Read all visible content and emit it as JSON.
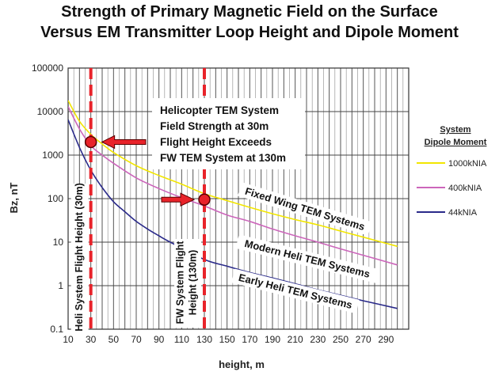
{
  "chart_data": {
    "type": "line",
    "title": "Strength of Primary Magnetic Field on the Surface",
    "subtitle": "Versus EM Transmitter Loop Height and Dipole Moment",
    "xlabel": "height, m",
    "ylabel": "Bz, nT",
    "xlim": [
      10,
      310
    ],
    "ylim": [
      0.1,
      100000
    ],
    "y_scale": "log",
    "grid": true,
    "x_ticks": [
      "10",
      "30",
      "50",
      "70",
      "90",
      "110",
      "130",
      "150",
      "170",
      "190",
      "210",
      "230",
      "250",
      "270",
      "290"
    ],
    "y_ticks": [
      "0.1",
      "1",
      "10",
      "100",
      "1000",
      "10000",
      "100000"
    ],
    "legend_title": [
      "System",
      "Dipole Moment"
    ],
    "legend_position": "right",
    "series": [
      {
        "name": "1000kNIA",
        "color": "#f2e600",
        "x": [
          10,
          20,
          30,
          40,
          50,
          70,
          90,
          110,
          130,
          150,
          170,
          190,
          210,
          230,
          250,
          270,
          300
        ],
        "y": [
          18000,
          6000,
          3000,
          1800,
          1150,
          570,
          340,
          215,
          130,
          90,
          63,
          45,
          33,
          25,
          18,
          13,
          8
        ]
      },
      {
        "name": "400kNIA",
        "color": "#cc66bb",
        "x": [
          10,
          20,
          30,
          40,
          50,
          70,
          90,
          110,
          130,
          150,
          170,
          190,
          210,
          230,
          250,
          270,
          300
        ],
        "y": [
          13000,
          4000,
          1650,
          1000,
          650,
          300,
          170,
          105,
          68,
          42,
          30,
          20,
          14,
          10,
          7,
          5,
          3
        ]
      },
      {
        "name": "44kNIA",
        "color": "#2a2a8a",
        "x": [
          10,
          20,
          30,
          40,
          50,
          60,
          70,
          80,
          90,
          100,
          130,
          150,
          170,
          190,
          210,
          230,
          250,
          270,
          300
        ],
        "y": [
          6500,
          1500,
          450,
          180,
          85,
          50,
          30,
          20,
          14,
          10,
          4,
          2.8,
          2,
          1.5,
          1.1,
          0.8,
          0.6,
          0.45,
          0.3
        ]
      }
    ],
    "vlines": [
      {
        "x": 30,
        "label": "Heli System Flight Height (30m)"
      },
      {
        "x": 130,
        "label_line1": "FW System Flight",
        "label_line2": "Height (130m)"
      }
    ],
    "markers": [
      {
        "x": 30,
        "y": 2000
      },
      {
        "x": 130,
        "y": 95
      }
    ],
    "callout": [
      "Helicopter TEM System",
      "Field Strength at 30m",
      "Flight Height Exceeds",
      "FW TEM System at 130m"
    ],
    "annotations": [
      "Fixed Wing TEM Systems",
      "Modern Heli TEM Systems",
      "Early Heli TEM Systems"
    ]
  }
}
